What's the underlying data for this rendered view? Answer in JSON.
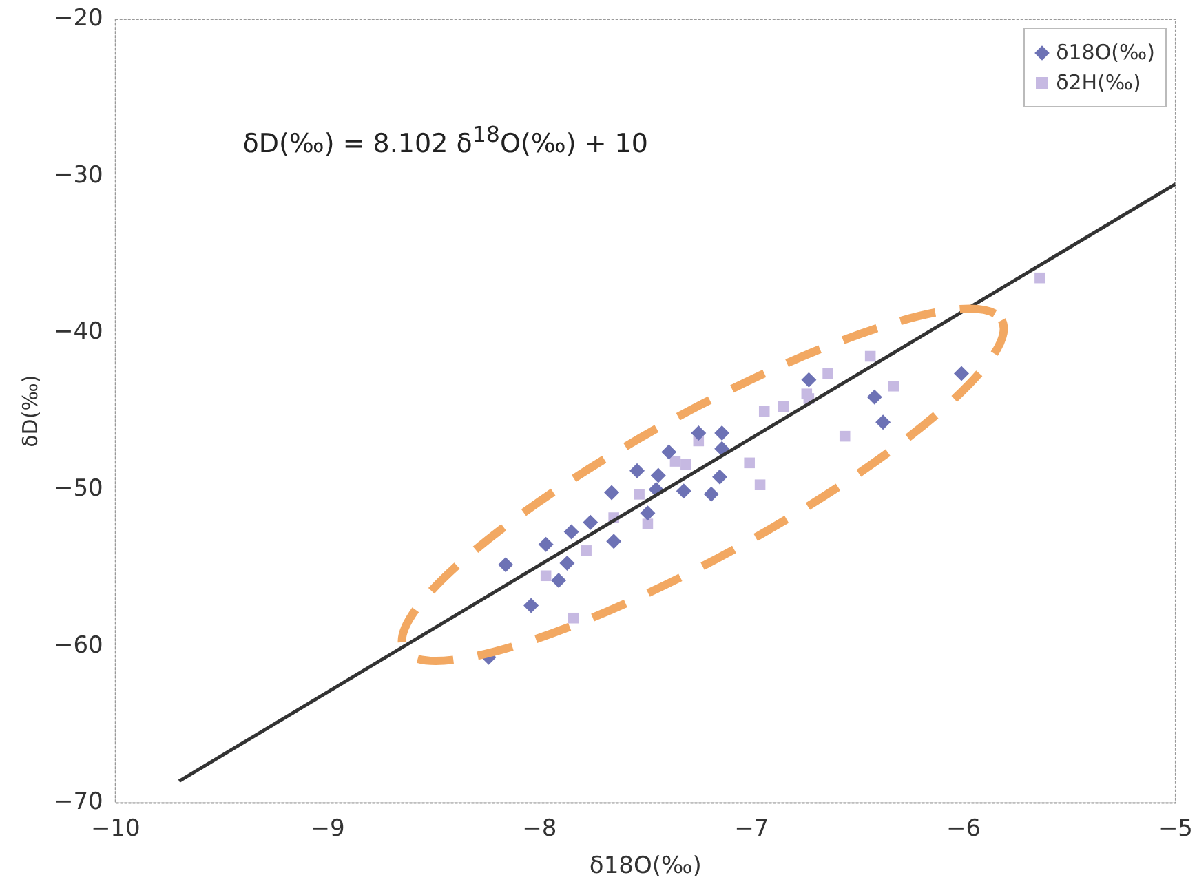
{
  "chart_data": {
    "type": "scatter",
    "xlabel": "δ18O(‰)",
    "ylabel": "δD(‰)",
    "xlim": [
      -10,
      -5
    ],
    "xticks": [
      -10,
      -9,
      -8,
      -7,
      -6,
      -5
    ],
    "ylim": [
      -70,
      -20
    ],
    "yticks": [
      -70,
      -60,
      -50,
      -40,
      -30,
      -20
    ],
    "grid": false,
    "legend": "top right",
    "annotations": [
      "δD(‰) = 8.102 δ$^{18}$O(‰) + 10"
    ],
    "series": [
      {
        "name": "δ18O(‰)",
        "color": "#6d72b5",
        "marker": "diamond",
        "x": [
          -8.16,
          -8.04,
          -8.24,
          -7.97,
          -7.87,
          -7.91,
          -7.85,
          -7.76,
          -7.65,
          -7.66,
          -7.54,
          -7.44,
          -7.45,
          -7.39,
          -7.32,
          -7.25,
          -7.14,
          -7.14,
          -7.15,
          -7.19,
          -7.49,
          -6.01,
          -6.42,
          -6.38,
          -6.73
        ],
        "values": [
          -54.8,
          -57.4,
          -60.7,
          -53.5,
          -54.7,
          -55.8,
          -52.7,
          -52.1,
          -53.3,
          -50.2,
          -48.8,
          -49.1,
          -50.0,
          -47.6,
          -50.1,
          -46.4,
          -46.4,
          -47.4,
          -49.2,
          -50.3,
          -51.5,
          -42.6,
          -44.1,
          -45.7,
          -43.0
        ]
      },
      {
        "name": "δ2H(‰)",
        "color": "#c6b9e2",
        "marker": "square",
        "x": [
          -7.84,
          -7.97,
          -7.78,
          -7.65,
          -7.53,
          -7.49,
          -7.36,
          -7.25,
          -7.31,
          -7.01,
          -6.96,
          -6.94,
          -6.85,
          -6.74,
          -6.73,
          -6.64,
          -6.44,
          -6.33,
          -6.56,
          -5.64
        ],
        "values": [
          -58.2,
          -55.5,
          -53.9,
          -51.8,
          -50.3,
          -52.2,
          -48.2,
          -46.9,
          -48.4,
          -48.3,
          -49.7,
          -45.0,
          -44.7,
          -43.9,
          -44.2,
          -42.6,
          -41.5,
          -43.4,
          -46.6,
          -36.5
        ]
      },
      {
        "type": "line",
        "color": "#333333",
        "marker": "none",
        "line_style": "solid",
        "x": [
          -9.7,
          -5
        ],
        "values": [
          -68.6,
          -30.5
        ]
      }
    ]
  }
}
